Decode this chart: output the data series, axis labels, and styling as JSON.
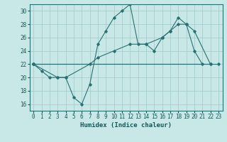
{
  "xlabel": "Humidex (Indice chaleur)",
  "bg_color": "#c8e8e8",
  "line_color": "#2a7070",
  "grid_color": "#a0c8c8",
  "xlim": [
    -0.5,
    23.5
  ],
  "ylim": [
    15.0,
    31.0
  ],
  "xticks": [
    0,
    1,
    2,
    3,
    4,
    5,
    6,
    7,
    8,
    9,
    10,
    11,
    12,
    13,
    14,
    15,
    16,
    17,
    18,
    19,
    20,
    21,
    22,
    23
  ],
  "yticks": [
    16,
    18,
    20,
    22,
    24,
    26,
    28,
    30
  ],
  "series1": [
    [
      0,
      22
    ],
    [
      1,
      21
    ],
    [
      2,
      20
    ],
    [
      3,
      20
    ],
    [
      4,
      20
    ],
    [
      5,
      17
    ],
    [
      6,
      16
    ],
    [
      7,
      19
    ],
    [
      8,
      25
    ],
    [
      9,
      27
    ],
    [
      10,
      29
    ],
    [
      11,
      30
    ],
    [
      12,
      31
    ],
    [
      13,
      25
    ],
    [
      14,
      25
    ],
    [
      15,
      24
    ],
    [
      16,
      26
    ],
    [
      17,
      27
    ],
    [
      18,
      29
    ],
    [
      19,
      28
    ],
    [
      20,
      24
    ],
    [
      21,
      22
    ]
  ],
  "series2": [
    [
      0,
      22
    ],
    [
      3,
      20
    ],
    [
      4,
      20
    ],
    [
      7,
      22
    ],
    [
      8,
      23
    ],
    [
      10,
      24
    ],
    [
      12,
      25
    ],
    [
      14,
      25
    ],
    [
      16,
      26
    ],
    [
      17,
      27
    ],
    [
      18,
      28
    ],
    [
      19,
      28
    ],
    [
      20,
      27
    ],
    [
      22,
      22
    ]
  ],
  "series3": [
    [
      0,
      22
    ],
    [
      22,
      22
    ]
  ],
  "series4": [
    [
      0,
      22
    ],
    [
      23,
      22
    ]
  ],
  "font_color": "#1a5555",
  "xlabel_fontsize": 6.5,
  "tick_fontsize": 5.5
}
